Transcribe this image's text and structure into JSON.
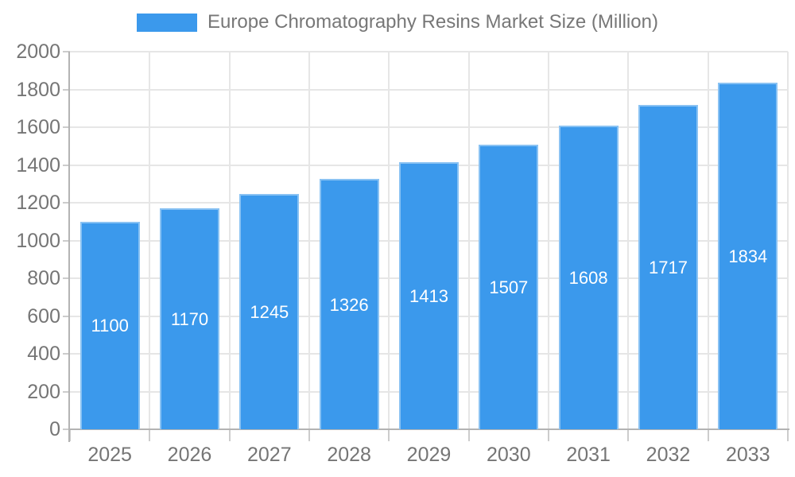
{
  "chart_data": {
    "type": "bar",
    "title": "Europe Chromatography Resins Market Size (Million)",
    "legend": {
      "label": "Europe Chromatography Resins Market Size (Million)",
      "position": "top"
    },
    "categories": [
      "2025",
      "2026",
      "2027",
      "2028",
      "2029",
      "2030",
      "2031",
      "2032",
      "2033"
    ],
    "values": [
      1100,
      1170,
      1245,
      1326,
      1413,
      1507,
      1608,
      1717,
      1834
    ],
    "xlabel": "",
    "ylabel": "",
    "ylim": [
      0,
      2000
    ],
    "ytick_step": 200,
    "grid": true,
    "colors": {
      "bar": "#3b99ec",
      "grid": "#e6e6e6",
      "axis_line": "#b3b3b3",
      "tick": "#cccccc",
      "axis_text": "#757575",
      "legend_text": "#777777",
      "value_label": "#ffffff",
      "background": "#ffffff"
    }
  }
}
